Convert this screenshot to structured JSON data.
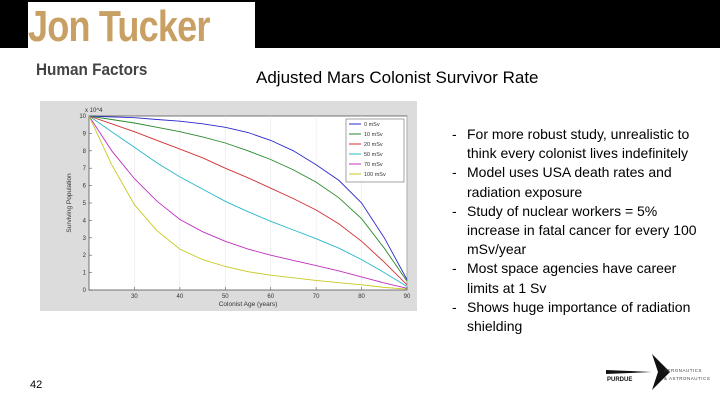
{
  "header": {
    "name": "Jon Tucker",
    "subtitle": "Human Factors"
  },
  "slide": {
    "title": "Adjusted Mars Colonist Survivor Rate",
    "page_number": "42"
  },
  "bullets": [
    "For more robust study, unrealistic to think every colonist lives indefinitely",
    "Model uses USA death rates and radiation exposure",
    "Study of nuclear workers = 5% increase in fatal cancer for every 100 mSv/year",
    "Most space agencies have career limits at 1 Sv",
    "Shows huge importance of radiation shielding"
  ],
  "bullet_marker": "-",
  "logo": {
    "word": "PURDUE",
    "line1": "AERONAUTICS",
    "line2": "& ASTRONAUTICS"
  },
  "chart_data": {
    "type": "line",
    "title": "",
    "xlabel": "Colonist Age (years)",
    "ylabel": "Surviving Population",
    "y_multiplier": "x 10^4",
    "xlim": [
      20,
      90
    ],
    "ylim": [
      0,
      10
    ],
    "x_ticks": [
      "30",
      "40",
      "50",
      "60",
      "70",
      "80",
      "90"
    ],
    "y_ticks": [
      "0",
      "1",
      "2",
      "3",
      "4",
      "5",
      "6",
      "7",
      "8",
      "9",
      "10"
    ],
    "legend_position": "top-right",
    "x": [
      20,
      25,
      30,
      35,
      40,
      45,
      50,
      55,
      60,
      65,
      70,
      75,
      80,
      85,
      90
    ],
    "series": [
      {
        "name": "0 mSv",
        "color": "#2b2bcc",
        "values": [
          10,
          9.95,
          9.9,
          9.8,
          9.7,
          9.55,
          9.35,
          9.05,
          8.6,
          8.0,
          7.2,
          6.3,
          5.0,
          3.0,
          0.6
        ]
      },
      {
        "name": "10 mSv",
        "color": "#2a8a2a",
        "values": [
          10,
          9.8,
          9.6,
          9.35,
          9.1,
          8.8,
          8.45,
          8.0,
          7.5,
          6.9,
          6.2,
          5.3,
          4.1,
          2.4,
          0.5
        ]
      },
      {
        "name": "20 mSv",
        "color": "#d03030",
        "values": [
          10,
          9.55,
          9.1,
          8.6,
          8.1,
          7.6,
          7.0,
          6.45,
          5.85,
          5.25,
          4.6,
          3.8,
          2.8,
          1.6,
          0.3
        ]
      },
      {
        "name": "50 mSv",
        "color": "#27b8c8",
        "values": [
          10,
          9.1,
          8.2,
          7.3,
          6.5,
          5.8,
          5.1,
          4.5,
          3.95,
          3.45,
          2.95,
          2.4,
          1.75,
          1.0,
          0.2
        ]
      },
      {
        "name": "70 mSv",
        "color": "#c030c0",
        "values": [
          10,
          8.0,
          6.4,
          5.1,
          4.05,
          3.35,
          2.8,
          2.35,
          2.0,
          1.7,
          1.4,
          1.1,
          0.75,
          0.4,
          0.1
        ]
      },
      {
        "name": "100 mSv",
        "color": "#c8c820",
        "values": [
          10,
          7.2,
          4.9,
          3.4,
          2.35,
          1.75,
          1.35,
          1.05,
          0.85,
          0.7,
          0.55,
          0.42,
          0.3,
          0.15,
          0.05
        ]
      }
    ]
  }
}
